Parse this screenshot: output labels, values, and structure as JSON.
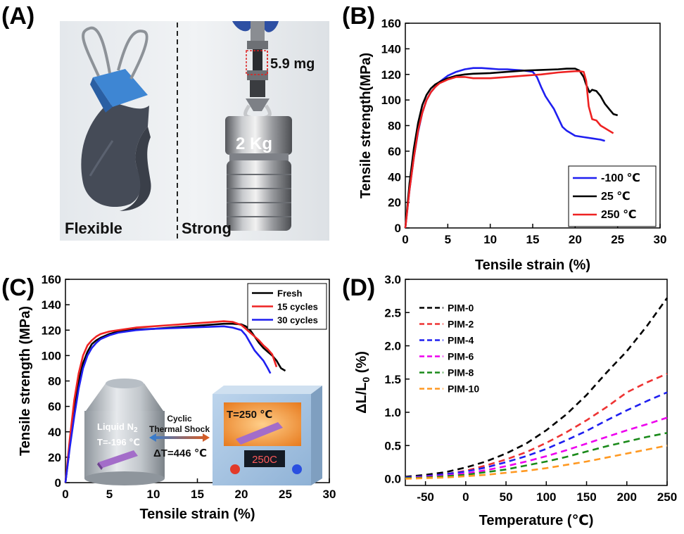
{
  "panel_labels": [
    "(A)",
    "(B)",
    "(C)",
    "(D)"
  ],
  "photo": {
    "left_label": "Flexible",
    "right_label": "Strong",
    "weight_label": "2 Kg",
    "sample_label": "5.9 mg"
  },
  "inset": {
    "liquid_label": "Liquid N",
    "liquid_sub": "2",
    "liquid_temp": "T=-196 ℃",
    "arrow_top": "Cyclic",
    "arrow_mid": "Thermal Shock",
    "delta_t": "ΔT=446 ℃",
    "oven_temp": "T=250 ℃",
    "oven_display": "250C"
  },
  "colors": {
    "blue": "#1f1ff0",
    "black": "#000000",
    "red": "#ee2222",
    "magenta": "#ee00ee",
    "green": "#1a8a1a",
    "orange": "#ff9922"
  },
  "chart_data": [
    {
      "id": "B",
      "type": "line",
      "xlabel": "Tensile strain (%)",
      "ylabel": "Tensile strength(MPa)",
      "xlim": [
        0,
        30
      ],
      "ylim": [
        0,
        160
      ],
      "xticks": [
        0,
        5,
        10,
        15,
        20,
        25,
        30
      ],
      "yticks": [
        0,
        20,
        40,
        60,
        80,
        100,
        120,
        140,
        160
      ],
      "legend_position": "bottom-right",
      "series": [
        {
          "name": "-100 ℃",
          "color": "#1f1ff0",
          "x": [
            0,
            0.5,
            1,
            1.5,
            2,
            2.5,
            3,
            3.5,
            4,
            5,
            6,
            7,
            8,
            9,
            10,
            11,
            12,
            13,
            14,
            15,
            15.5,
            16,
            16.5,
            17,
            17.5,
            18,
            18.5,
            19,
            20,
            21,
            22,
            23,
            23.5
          ],
          "y": [
            0,
            30,
            55,
            75,
            90,
            100,
            106,
            110,
            114,
            119,
            122,
            124,
            125,
            125,
            124.5,
            124,
            124,
            123.5,
            123,
            122,
            118,
            110,
            103,
            98,
            93,
            86,
            79,
            76,
            72,
            71,
            70,
            69,
            68
          ]
        },
        {
          "name": "25 ℃",
          "color": "#000000",
          "x": [
            0,
            0.5,
            1,
            1.5,
            2,
            2.5,
            3,
            3.5,
            4,
            5,
            6,
            7,
            8,
            10,
            12,
            14,
            16,
            18,
            19,
            20,
            20.5,
            21,
            21.3,
            21.7,
            22,
            22.5,
            23,
            23.5,
            24,
            24.5,
            25
          ],
          "y": [
            0,
            35,
            62,
            82,
            96,
            104,
            109,
            112,
            114,
            117,
            119,
            120,
            120.5,
            121,
            122,
            123,
            123.5,
            124,
            124.5,
            124.5,
            123,
            118,
            112,
            106,
            108,
            107,
            103,
            97,
            93,
            89,
            88
          ]
        },
        {
          "name": "250 ℃",
          "color": "#ee2222",
          "x": [
            0,
            0.5,
            1,
            1.5,
            2,
            2.5,
            3,
            3.5,
            4,
            5,
            6,
            7,
            8,
            10,
            12,
            14,
            16,
            18,
            19,
            20,
            20.5,
            21,
            21.3,
            21.6,
            22,
            22.5,
            23,
            23.5,
            24,
            24.5
          ],
          "y": [
            0,
            30,
            55,
            76,
            90,
            100,
            106,
            110,
            113,
            116,
            118,
            118,
            117,
            117,
            118,
            119,
            120,
            121.5,
            122,
            122.5,
            122.5,
            122,
            115,
            95,
            85,
            84,
            80,
            78,
            76,
            74
          ]
        }
      ]
    },
    {
      "id": "C",
      "type": "line",
      "xlabel": "Tensile strain (%)",
      "ylabel": "Tensile strength (MPa)",
      "xlim": [
        0,
        30
      ],
      "ylim": [
        0,
        160
      ],
      "xticks": [
        0,
        5,
        10,
        15,
        20,
        25,
        30
      ],
      "yticks": [
        0,
        20,
        40,
        60,
        80,
        100,
        120,
        140,
        160
      ],
      "legend_position": "top-right",
      "series": [
        {
          "name": "Fresh",
          "color": "#000000",
          "x": [
            0,
            0.5,
            1,
            1.5,
            2,
            2.5,
            3,
            3.5,
            4,
            5,
            6,
            8,
            10,
            12,
            14,
            16,
            18,
            19,
            20,
            20.5,
            21,
            21.5,
            22,
            22.5,
            23,
            23.5,
            24,
            24.5,
            25
          ],
          "y": [
            0,
            30,
            58,
            80,
            94,
            103,
            109,
            112,
            114,
            117,
            119,
            120.5,
            121,
            122,
            123,
            124,
            125,
            125,
            124.5,
            123,
            120,
            115,
            110,
            106,
            103,
            100,
            96,
            90,
            88
          ]
        },
        {
          "name": "15 cycles",
          "color": "#ee2222",
          "x": [
            0,
            0.5,
            1,
            1.5,
            2,
            2.5,
            3,
            3.5,
            4,
            5,
            6,
            8,
            10,
            12,
            14,
            16,
            18,
            19,
            20,
            20.5,
            21,
            21.5,
            22,
            22.5,
            23,
            23.5,
            24
          ],
          "y": [
            0,
            35,
            65,
            86,
            100,
            108,
            112,
            115,
            117,
            119,
            120,
            122,
            123,
            124,
            125,
            126,
            127,
            126.5,
            124,
            121,
            118,
            115,
            112,
            108,
            105,
            101,
            91
          ]
        },
        {
          "name": "30 cycles",
          "color": "#1f1ff0",
          "x": [
            0,
            0.5,
            1,
            1.5,
            2,
            2.5,
            3,
            3.5,
            4,
            5,
            6,
            8,
            10,
            12,
            14,
            16,
            18,
            19,
            20,
            20.5,
            21,
            21.5,
            22,
            22.5,
            23,
            23.3
          ],
          "y": [
            0,
            28,
            52,
            74,
            90,
            100,
            106,
            110,
            113,
            116,
            118,
            120,
            121,
            121.5,
            122,
            122.5,
            123,
            122,
            120,
            116,
            110,
            104,
            100,
            96,
            90,
            86
          ]
        }
      ]
    },
    {
      "id": "D",
      "type": "line",
      "xlabel": "Temperature (℃)",
      "ylabel_main": "ΔL/L",
      "ylabel_sub": "0",
      "ylabel_unit": " (%)",
      "xlim": [
        -75,
        250
      ],
      "ylim": [
        -0.1,
        3.0
      ],
      "xticks": [
        -50,
        0,
        50,
        100,
        150,
        200,
        250
      ],
      "yticks": [
        0.0,
        0.5,
        1.0,
        1.5,
        2.0,
        2.5,
        3.0
      ],
      "ytick_labels": [
        "0.0",
        "0.5",
        "1.0",
        "1.5",
        "2.0",
        "2.5",
        "3.0"
      ],
      "legend_position": "top-left",
      "series": [
        {
          "name": "PIM-0",
          "color": "#000000",
          "x": [
            -75,
            -50,
            -25,
            0,
            25,
            50,
            75,
            100,
            125,
            150,
            175,
            200,
            225,
            250
          ],
          "y": [
            0.03,
            0.06,
            0.1,
            0.17,
            0.26,
            0.38,
            0.53,
            0.73,
            0.97,
            1.26,
            1.6,
            1.92,
            2.3,
            2.72
          ]
        },
        {
          "name": "PIM-2",
          "color": "#ee3333",
          "x": [
            -75,
            -50,
            -25,
            0,
            25,
            50,
            75,
            100,
            125,
            150,
            175,
            200,
            225,
            250
          ],
          "y": [
            0.02,
            0.04,
            0.07,
            0.12,
            0.2,
            0.29,
            0.4,
            0.54,
            0.7,
            0.88,
            1.08,
            1.3,
            1.45,
            1.58
          ]
        },
        {
          "name": "PIM-4",
          "color": "#1f1ff0",
          "x": [
            -75,
            -50,
            -25,
            0,
            25,
            50,
            75,
            100,
            125,
            150,
            175,
            200,
            225,
            250
          ],
          "y": [
            0.02,
            0.04,
            0.07,
            0.11,
            0.17,
            0.25,
            0.34,
            0.45,
            0.58,
            0.72,
            0.88,
            1.03,
            1.17,
            1.3
          ]
        },
        {
          "name": "PIM-6",
          "color": "#ee00ee",
          "x": [
            -75,
            -50,
            -25,
            0,
            25,
            50,
            75,
            100,
            125,
            150,
            175,
            200,
            225,
            250
          ],
          "y": [
            0.01,
            0.03,
            0.05,
            0.08,
            0.13,
            0.19,
            0.26,
            0.34,
            0.43,
            0.53,
            0.63,
            0.73,
            0.82,
            0.92
          ]
        },
        {
          "name": "PIM-8",
          "color": "#1a8a1a",
          "x": [
            -75,
            -50,
            -25,
            0,
            25,
            50,
            75,
            100,
            125,
            150,
            175,
            200,
            225,
            250
          ],
          "y": [
            0.01,
            0.02,
            0.04,
            0.06,
            0.1,
            0.14,
            0.2,
            0.26,
            0.33,
            0.41,
            0.49,
            0.56,
            0.63,
            0.69
          ]
        },
        {
          "name": "PIM-10",
          "color": "#ff9922",
          "x": [
            -75,
            -50,
            -25,
            0,
            25,
            50,
            75,
            100,
            125,
            150,
            175,
            200,
            225,
            250
          ],
          "y": [
            0.0,
            0.01,
            0.02,
            0.04,
            0.06,
            0.09,
            0.12,
            0.16,
            0.21,
            0.26,
            0.32,
            0.38,
            0.44,
            0.5
          ]
        }
      ]
    }
  ]
}
